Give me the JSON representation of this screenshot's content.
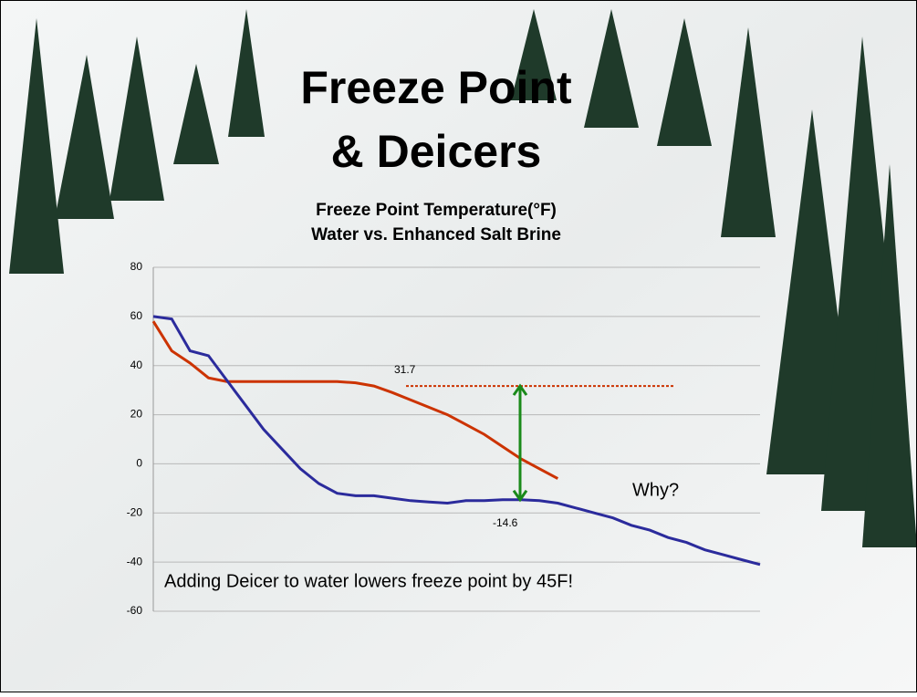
{
  "slide_title": [
    "Freeze Point",
    "& Deicers"
  ],
  "chart_data": {
    "type": "line",
    "title": "Freeze Point Temperature(°F)",
    "subtitle": "Water vs. Enhanced Salt Brine",
    "series": [
      {
        "color": "#cc3300",
        "values": [
          58,
          46,
          41,
          35,
          33.5,
          33.5,
          33.5,
          33.5,
          33.5,
          33.5,
          33.5,
          33,
          31.7,
          29,
          26,
          23,
          20,
          16,
          12,
          7,
          2,
          -2,
          -6,
          null,
          null,
          null,
          null,
          null,
          null,
          null,
          null,
          null,
          null,
          null
        ]
      },
      {
        "color": "#2b2b9c",
        "values": [
          60,
          59,
          46,
          44,
          34,
          24,
          14,
          6,
          -2,
          -8,
          -12,
          -13,
          -13,
          -14,
          -15,
          -15.5,
          -16,
          -15,
          -15,
          -14.6,
          -14.6,
          -15,
          -16,
          -18,
          -20,
          -22,
          -25,
          -27,
          -30,
          -32,
          -35,
          -37,
          -39,
          -41
        ]
      }
    ],
    "ylim": [
      -60,
      80
    ],
    "yticks": [
      -60,
      -40,
      -20,
      0,
      20,
      40,
      60,
      80
    ],
    "grid": true,
    "annotations": [
      {
        "value": 31.7
      },
      {
        "value": -14.6
      }
    ],
    "notes": [
      "Why?",
      "Adding Deicer to water lowers freeze point by 45F!"
    ]
  }
}
